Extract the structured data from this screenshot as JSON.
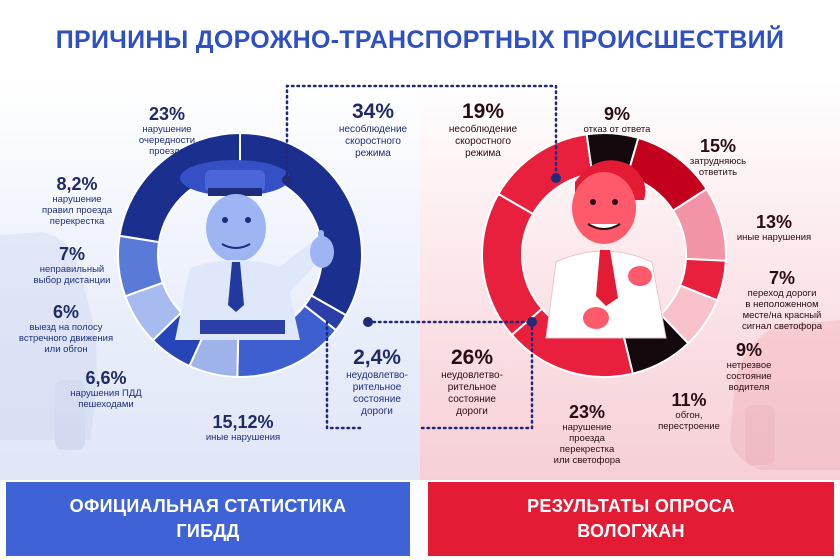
{
  "title": "ПРИЧИНЫ ДОРОЖНО-ТРАНСПОРТНЫХ ПРОИСШЕСТВИЙ",
  "banners": {
    "left": "ОФИЦИАЛЬНАЯ СТАТИСТИКА\nГИБДД",
    "right": "РЕЗУЛЬТАТЫ ОПРОСА\nВОЛОГЖАН"
  },
  "colors": {
    "title": "#2f4fc4",
    "banner_left": "#3f63d6",
    "banner_right": "#e31b35",
    "blue_palette": [
      "#1b2f8f",
      "#2c3fa9",
      "#3d5fd0",
      "#9db3ea",
      "#2645b8",
      "#a8bbf0",
      "#5a7ad8"
    ],
    "red_palette": [
      "#e8203d",
      "#140a0e",
      "#c4001f",
      "#f294a6",
      "#e8203d",
      "#f8c0ca",
      "#140a0e",
      "#e8203d"
    ]
  },
  "chart_data": [
    {
      "type": "pie",
      "variant": "donut",
      "name": "official",
      "series": [
        {
          "label": "несоблюдение скоростного режима",
          "value": 34,
          "value_label": "34%"
        },
        {
          "label": "неудовлетво-рительное состояние дороги",
          "value": 2.4,
          "value_label": "2,4%"
        },
        {
          "label": "иные нарушения",
          "value": 15.12,
          "value_label": "15,12%"
        },
        {
          "label": "нарушения ПДД пешеходами",
          "value": 6.6,
          "value_label": "6,6%"
        },
        {
          "label": "выезд на полосу встречного движения или обгон",
          "value": 6,
          "value_label": "6%"
        },
        {
          "label": "неправильный выбор дистанции",
          "value": 7,
          "value_label": "7%"
        },
        {
          "label": "нарушение правил проезда перекрестка",
          "value": 8.2,
          "value_label": "8,2%"
        },
        {
          "label": "нарушение очередности проезда",
          "value": 23,
          "value_label": "23%"
        }
      ]
    },
    {
      "type": "pie",
      "variant": "donut",
      "name": "survey",
      "series": [
        {
          "label": "несоблюдение скоростного режима",
          "value": 19,
          "value_label": "19%"
        },
        {
          "label": "отказ от ответа",
          "value": 9,
          "value_label": "9%"
        },
        {
          "label": "затрудняюсь ответить",
          "value": 15,
          "value_label": "15%"
        },
        {
          "label": "иные нарушения",
          "value": 13,
          "value_label": "13%"
        },
        {
          "label": "переход дороги в неположенном месте/на красный сигнал светофора",
          "value": 7,
          "value_label": "7%"
        },
        {
          "label": "нетрезвое состояние водителя",
          "value": 9,
          "value_label": "9%"
        },
        {
          "label": "обгон, перестроение",
          "value": 11,
          "value_label": "11%"
        },
        {
          "label": "нарушение проезда перекрестка или светофора",
          "value": 23,
          "value_label": "23%"
        },
        {
          "label": "неудовлетво-рительное состояние дороги",
          "value": 26,
          "value_label": "26%"
        }
      ]
    }
  ],
  "labels": {
    "left": [
      {
        "pct": "34%",
        "text": "несоблюдение\nскоростного\nрежима"
      },
      {
        "pct": "23%",
        "text": "нарушение\nочередности\nпроезда"
      },
      {
        "pct": "8,2%",
        "text": "нарушение\nправил проезда\nперекрестка"
      },
      {
        "pct": "7%",
        "text": "неправильный\nвыбор дистанции"
      },
      {
        "pct": "6%",
        "text": "выезд на полосу\nвстречного движения\nили обгон"
      },
      {
        "pct": "6,6%",
        "text": "нарушения ПДД\nпешеходами"
      },
      {
        "pct": "15,12%",
        "text": "иные нарушения"
      },
      {
        "pct": "2,4%",
        "text": "неудовлетво-\nрительное\nсостояние\nдороги"
      }
    ],
    "right": [
      {
        "pct": "19%",
        "text": "несоблюдение\nскоростного\nрежима"
      },
      {
        "pct": "9%",
        "text": "отказ от ответа"
      },
      {
        "pct": "15%",
        "text": "затрудняюсь\nответить"
      },
      {
        "pct": "13%",
        "text": "иные нарушения"
      },
      {
        "pct": "7%",
        "text": "переход дороги\nв неположенном\nместе/на красный\nсигнал светофора"
      },
      {
        "pct": "9%",
        "text": "нетрезвое\nсостояние\nводителя"
      },
      {
        "pct": "11%",
        "text": "обгон,\nперестроение"
      },
      {
        "pct": "23%",
        "text": "нарушение\nпроезда\nперекрестка\nили светофора"
      },
      {
        "pct": "26%",
        "text": "неудовлетво-\nрительное\nсостояние\nдороги"
      }
    ]
  }
}
